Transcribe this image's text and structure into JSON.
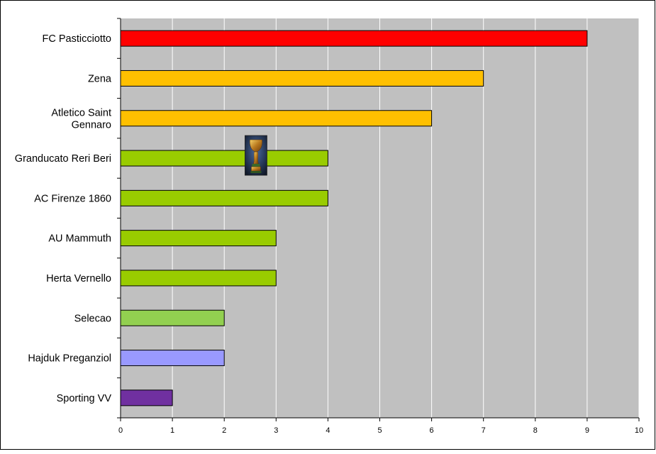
{
  "chart_data": {
    "type": "bar",
    "orientation": "horizontal",
    "categories": [
      "FC Pasticciotto",
      "Zena",
      "Atletico Saint Gennaro",
      "Granducato Reri Beri",
      "AC Firenze 1860",
      "AU Mammuth",
      "Herta Vernello",
      "Selecao",
      "Hajduk Preganziol",
      "Sporting VV"
    ],
    "category_lines": [
      [
        "FC Pasticciotto"
      ],
      [
        "Zena"
      ],
      [
        "Atletico Saint",
        "Gennaro"
      ],
      [
        "Granducato Reri Beri"
      ],
      [
        "AC Firenze 1860"
      ],
      [
        "AU Mammuth"
      ],
      [
        "Herta Vernello"
      ],
      [
        "Selecao"
      ],
      [
        "Hajduk Preganziol"
      ],
      [
        "Sporting VV"
      ]
    ],
    "values": [
      9,
      7,
      6,
      4,
      4,
      3,
      3,
      2,
      2,
      1
    ],
    "bar_colors": [
      "#ff0000",
      "#ffc000",
      "#ffc000",
      "#99cc00",
      "#99cc00",
      "#99cc00",
      "#99cc00",
      "#92d050",
      "#9999ff",
      "#7030a0"
    ],
    "xlim": [
      0,
      10
    ],
    "x_ticks": [
      "0",
      "1",
      "2",
      "3",
      "4",
      "5",
      "6",
      "7",
      "8",
      "9",
      "10"
    ],
    "title": "",
    "xlabel": "",
    "ylabel": "",
    "grid": "vertical",
    "plot_background": "#c0c0c0",
    "gridline_color": "#ffffff",
    "frame_color": "#000000",
    "annotation": {
      "icon": "trophy-icon",
      "category": "Granducato Reri Beri"
    }
  }
}
